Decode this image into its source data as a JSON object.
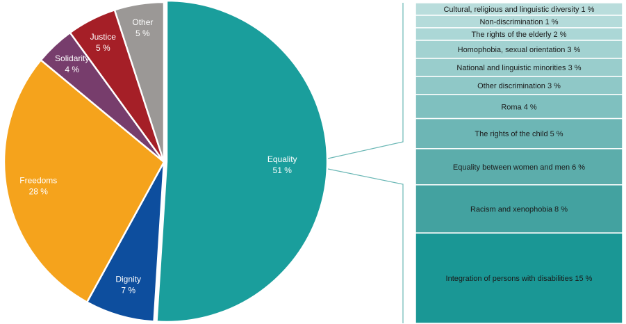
{
  "chart_data": [
    {
      "type": "pie",
      "categories": [
        "Equality",
        "Dignity",
        "Freedoms",
        "Solidarity",
        "Justice",
        "Other"
      ],
      "labels": [
        "Equality",
        "Dignity",
        "Freedoms",
        "Solidarity",
        "Justice",
        "Other"
      ],
      "values": [
        51,
        7,
        28,
        4,
        5,
        5
      ],
      "value_labels": [
        "51 %",
        "7 %",
        "28 %",
        "4 %",
        "5 %",
        "5 %"
      ],
      "colors": [
        "#1a9e9c",
        "#0d4e9e",
        "#f5a31c",
        "#773d6c",
        "#a51f27",
        "#9b9896"
      ],
      "start": "12 o'clock",
      "direction": "clockwise",
      "exploded_slice": "Equality"
    },
    {
      "type": "bar",
      "orientation": "stacked",
      "parent_slice": "Equality",
      "categories": [
        "Cultural, religious and linguistic diversity",
        "Non-discrimination",
        "The rights of the elderly",
        "Homophobia, sexual orientation",
        "National and linguistic minorities",
        "Other discrimination",
        "Roma",
        "The rights of the child",
        "Equality between women and men",
        "Racism and xenophobia",
        "Integration of persons with disabilities"
      ],
      "labels": [
        "Cultural, religious and linguistic diversity 1 %",
        "Non-discrimination 1 %",
        "The rights of the elderly 2 %",
        "Homophobia, sexual orientation 3 %",
        "National and linguistic minorities 3 %",
        "Other discrimination 3 %",
        "Roma 4 %",
        "The rights of the child 5 %",
        "Equality between women and men 6 %",
        "Racism and xenophobia 8 %",
        "Integration of persons with disabilities 15 %"
      ],
      "values": [
        1,
        1,
        2,
        3,
        3,
        3,
        4,
        5,
        6,
        8,
        15
      ],
      "colors": [
        "#b9dddc",
        "#b4dbda",
        "#abd7d6",
        "#a2d2d1",
        "#99cdcc",
        "#8fc8c7",
        "#7fc0bf",
        "#6db6b5",
        "#5cadab",
        "#43a2a0",
        "#1a9795"
      ]
    }
  ]
}
